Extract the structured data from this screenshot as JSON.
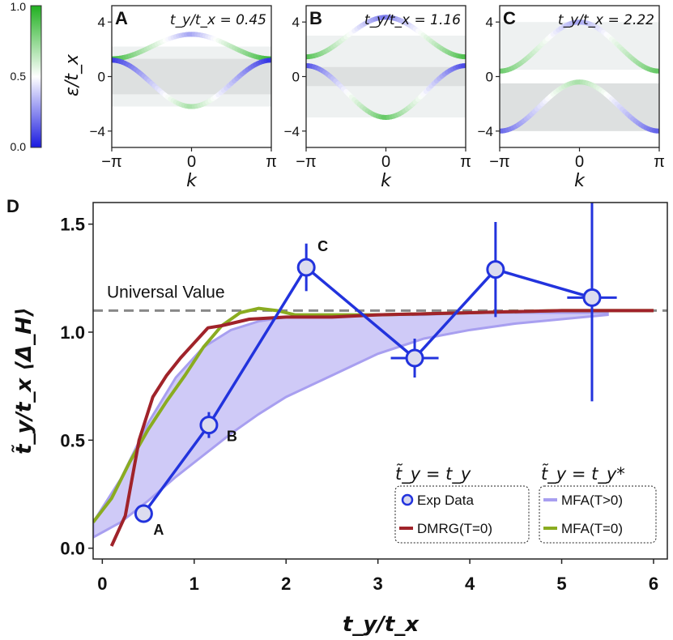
{
  "figure": {
    "panel_labels": [
      "A",
      "B",
      "C",
      "D"
    ],
    "colorbar": {
      "ticks": [
        "1.0",
        "0.5",
        "0.0"
      ],
      "colors": {
        "low": "#1a1ae0",
        "mid": "#ffffff",
        "high": "#20b020"
      }
    }
  },
  "chart_data": [
    {
      "type": "line",
      "panel": "A",
      "ratio_label": "t_y/t_x = 0.45",
      "ratio_value": 0.45,
      "xlabel": "k",
      "ylabel": "ε/t_x",
      "x_ticks": [
        "−π",
        "0",
        "π"
      ],
      "y_ticks": [
        "4",
        "0",
        "−4"
      ],
      "ylim": [
        -5.2,
        5.2
      ],
      "bands": [
        {
          "name": "upper",
          "k0": 2.2,
          "amp": 0.9,
          "color_scale": [
            0.95,
            0.3
          ]
        },
        {
          "name": "lower",
          "k0": -0.5,
          "amp": 1.7,
          "color_scale": [
            0.05,
            0.7
          ]
        }
      ],
      "shaded_regions": [
        [
          -2.2,
          2.2
        ],
        [
          -1.3,
          1.3
        ]
      ]
    },
    {
      "type": "line",
      "panel": "B",
      "ratio_label": "t_y/t_x = 1.16",
      "ratio_value": 1.16,
      "xlabel": "k",
      "ylabel": "",
      "x_ticks": [
        "−π",
        "0",
        "π"
      ],
      "y_ticks": [
        "4",
        "0",
        "−4"
      ],
      "ylim": [
        -5.2,
        5.2
      ],
      "bands": [
        {
          "name": "upper",
          "k0": 2.9,
          "amp": 1.45,
          "color_scale": [
            0.9,
            0.2
          ]
        },
        {
          "name": "lower",
          "k0": -1.1,
          "amp": 1.9,
          "color_scale": [
            0.1,
            0.85
          ]
        }
      ],
      "shaded_regions": [
        [
          -3.0,
          3.0
        ],
        [
          -0.7,
          0.7
        ]
      ]
    },
    {
      "type": "line",
      "panel": "C",
      "ratio_label": "t_y/t_x = 2.22",
      "ratio_value": 2.22,
      "xlabel": "k",
      "ylabel": "",
      "x_ticks": [
        "−π",
        "0",
        "π"
      ],
      "y_ticks": [
        "4",
        "0",
        "−4"
      ],
      "ylim": [
        -5.2,
        5.2
      ],
      "bands": [
        {
          "name": "upper",
          "k0": 2.2,
          "amp": 1.8,
          "color_scale": [
            0.85,
            0.3
          ]
        },
        {
          "name": "lower",
          "k0": -2.2,
          "amp": 1.8,
          "color_scale": [
            0.15,
            0.7
          ]
        }
      ],
      "shaded_regions": [
        [
          0.5,
          4.0
        ],
        [
          -4.0,
          -0.5
        ]
      ]
    },
    {
      "type": "line",
      "panel": "D",
      "xlabel": "t_y/t_x",
      "ylabel": "t̃_y/t_x ⟨Δ_H⟩",
      "xlim": [
        -0.1,
        6.15
      ],
      "ylim": [
        -0.05,
        1.6
      ],
      "x_ticks": [
        "0",
        "1",
        "2",
        "3",
        "4",
        "5",
        "6"
      ],
      "y_ticks": [
        "0.0",
        "0.5",
        "1.0",
        "1.5"
      ],
      "universal_value": {
        "label": "Universal Value",
        "y": 1.1
      },
      "legend": {
        "header_left": "t̃_y = t_y",
        "header_right": "t̃_y = t_y*",
        "entries": [
          "Exp Data",
          "DMRG(T=0)",
          "MFA(T>0)",
          "MFA(T=0)"
        ],
        "placement": "bottom-right"
      },
      "exp_data": {
        "x": [
          0.45,
          1.16,
          2.22,
          3.4,
          4.28,
          5.33
        ],
        "y": [
          0.16,
          0.57,
          1.3,
          0.88,
          1.29,
          1.16
        ],
        "yerr": [
          0.0,
          0.06,
          0.11,
          0.09,
          0.22,
          0.48
        ],
        "xerr": [
          0.0,
          0.0,
          0.0,
          0.26,
          0.0,
          0.27
        ],
        "point_labels": [
          "A",
          "B",
          "C",
          "",
          "",
          ""
        ],
        "color": "#2233dd"
      },
      "dmrg": {
        "x": [
          0.1,
          0.25,
          0.4,
          0.55,
          0.7,
          0.85,
          1.0,
          1.15,
          1.3,
          1.6,
          2.0,
          2.5,
          3.0,
          4.0,
          5.0,
          6.0
        ],
        "y": [
          0.01,
          0.15,
          0.5,
          0.7,
          0.8,
          0.88,
          0.95,
          1.02,
          1.03,
          1.06,
          1.07,
          1.07,
          1.08,
          1.09,
          1.1,
          1.1
        ],
        "color": "#a0232a"
      },
      "mfa_t0": {
        "x": [
          -0.1,
          0.1,
          0.3,
          0.5,
          0.7,
          0.9,
          1.1,
          1.3,
          1.5,
          1.7,
          1.9,
          2.1,
          2.5,
          3.0,
          4.0,
          5.0,
          6.0
        ],
        "y": [
          0.12,
          0.23,
          0.4,
          0.55,
          0.68,
          0.8,
          0.93,
          1.03,
          1.09,
          1.11,
          1.1,
          1.08,
          1.08,
          1.08,
          1.09,
          1.1,
          1.1
        ],
        "color": "#8aac20"
      },
      "mfa_band": {
        "x": [
          -0.1,
          0.2,
          0.5,
          0.8,
          1.1,
          1.4,
          1.7,
          2.0,
          2.5,
          3.0,
          3.5,
          4.0,
          4.5,
          5.0,
          5.5
        ],
        "upper": [
          0.12,
          0.32,
          0.58,
          0.79,
          0.93,
          1.01,
          1.05,
          1.07,
          1.08,
          1.08,
          1.08,
          1.09,
          1.09,
          1.09,
          1.09
        ],
        "lower": [
          0.05,
          0.12,
          0.22,
          0.33,
          0.43,
          0.53,
          0.62,
          0.7,
          0.8,
          0.9,
          0.97,
          1.01,
          1.04,
          1.06,
          1.08
        ],
        "color": "#a89ff0"
      }
    }
  ]
}
